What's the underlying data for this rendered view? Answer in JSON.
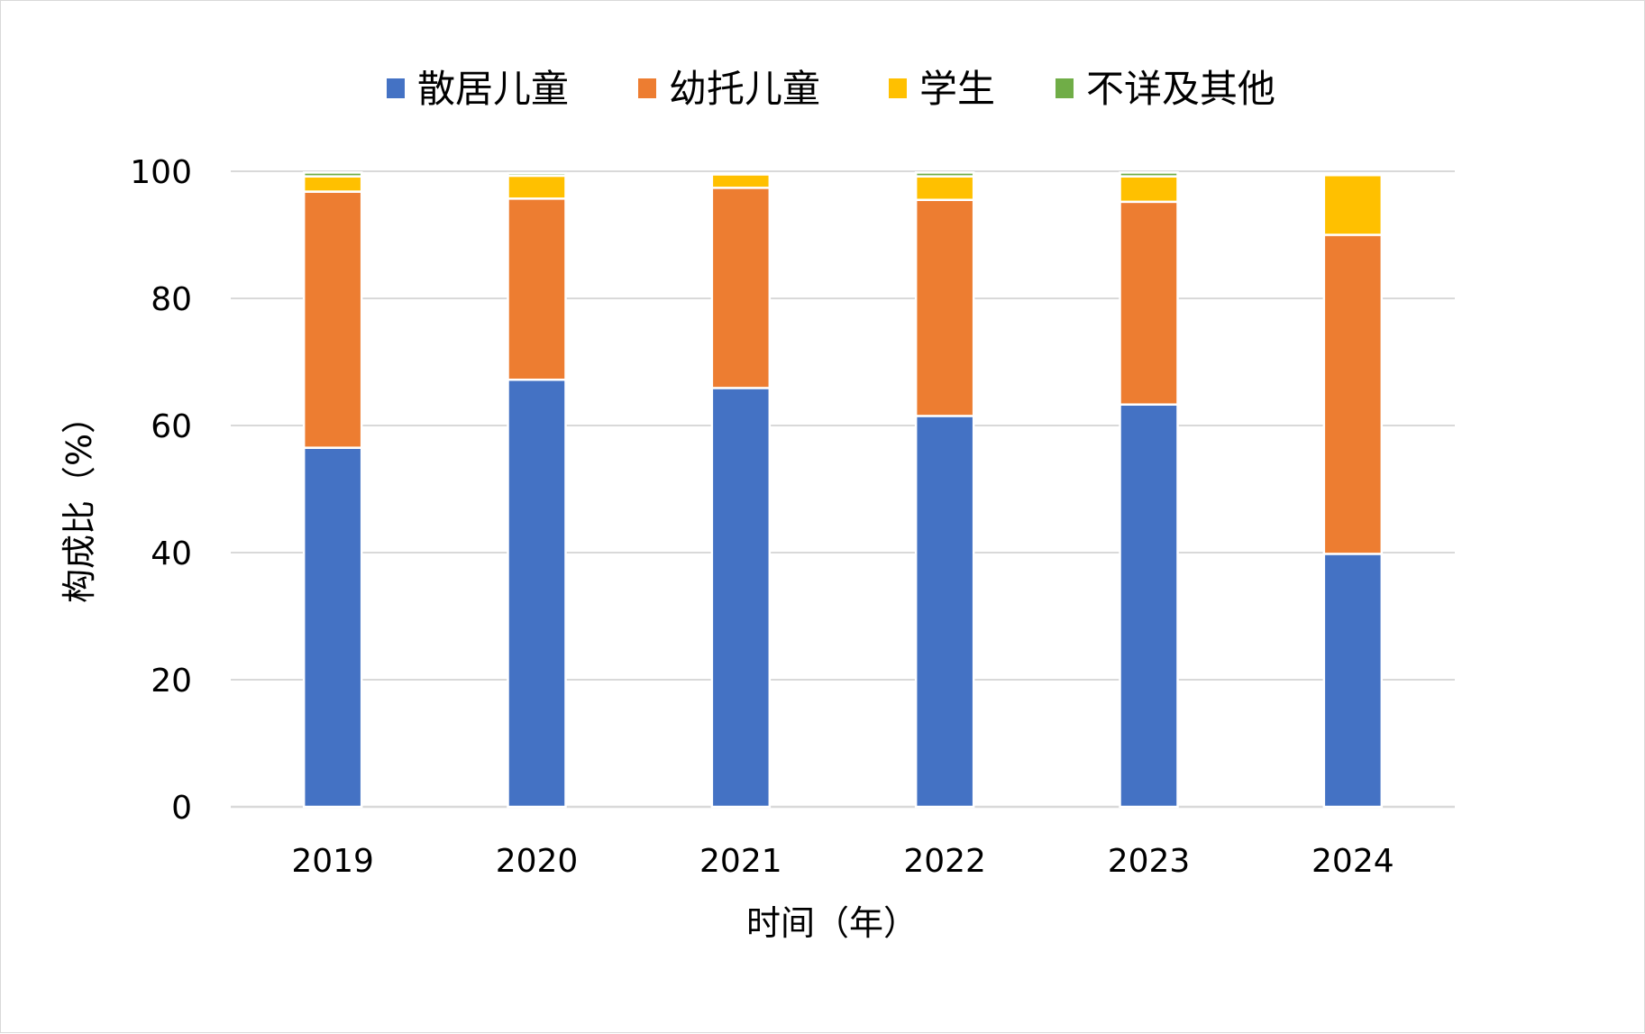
{
  "chart_data": {
    "type": "bar",
    "stacked": true,
    "title": "",
    "xlabel": "时间（年）",
    "ylabel": "构成比（%）",
    "ylim": [
      0,
      100
    ],
    "yticks": [
      0,
      20,
      40,
      60,
      80,
      100
    ],
    "categories": [
      "2019",
      "2020",
      "2021",
      "2022",
      "2023",
      "2024"
    ],
    "legend_position": "top",
    "grid": true,
    "series": [
      {
        "name": "散居儿童",
        "color": "#4472C4",
        "values": [
          56.5,
          67.2,
          65.9,
          61.5,
          63.3,
          39.8
        ]
      },
      {
        "name": "幼托儿童",
        "color": "#ED7D31",
        "values": [
          40.3,
          28.5,
          31.5,
          34.0,
          31.9,
          50.2
        ]
      },
      {
        "name": "学生",
        "color": "#FFC000",
        "values": [
          2.4,
          3.6,
          2.1,
          3.7,
          4.0,
          9.4
        ]
      },
      {
        "name": "不详及其他",
        "color": "#70AD47",
        "values": [
          0.6,
          0.4,
          0.0,
          0.6,
          0.6,
          0.1
        ]
      }
    ]
  }
}
